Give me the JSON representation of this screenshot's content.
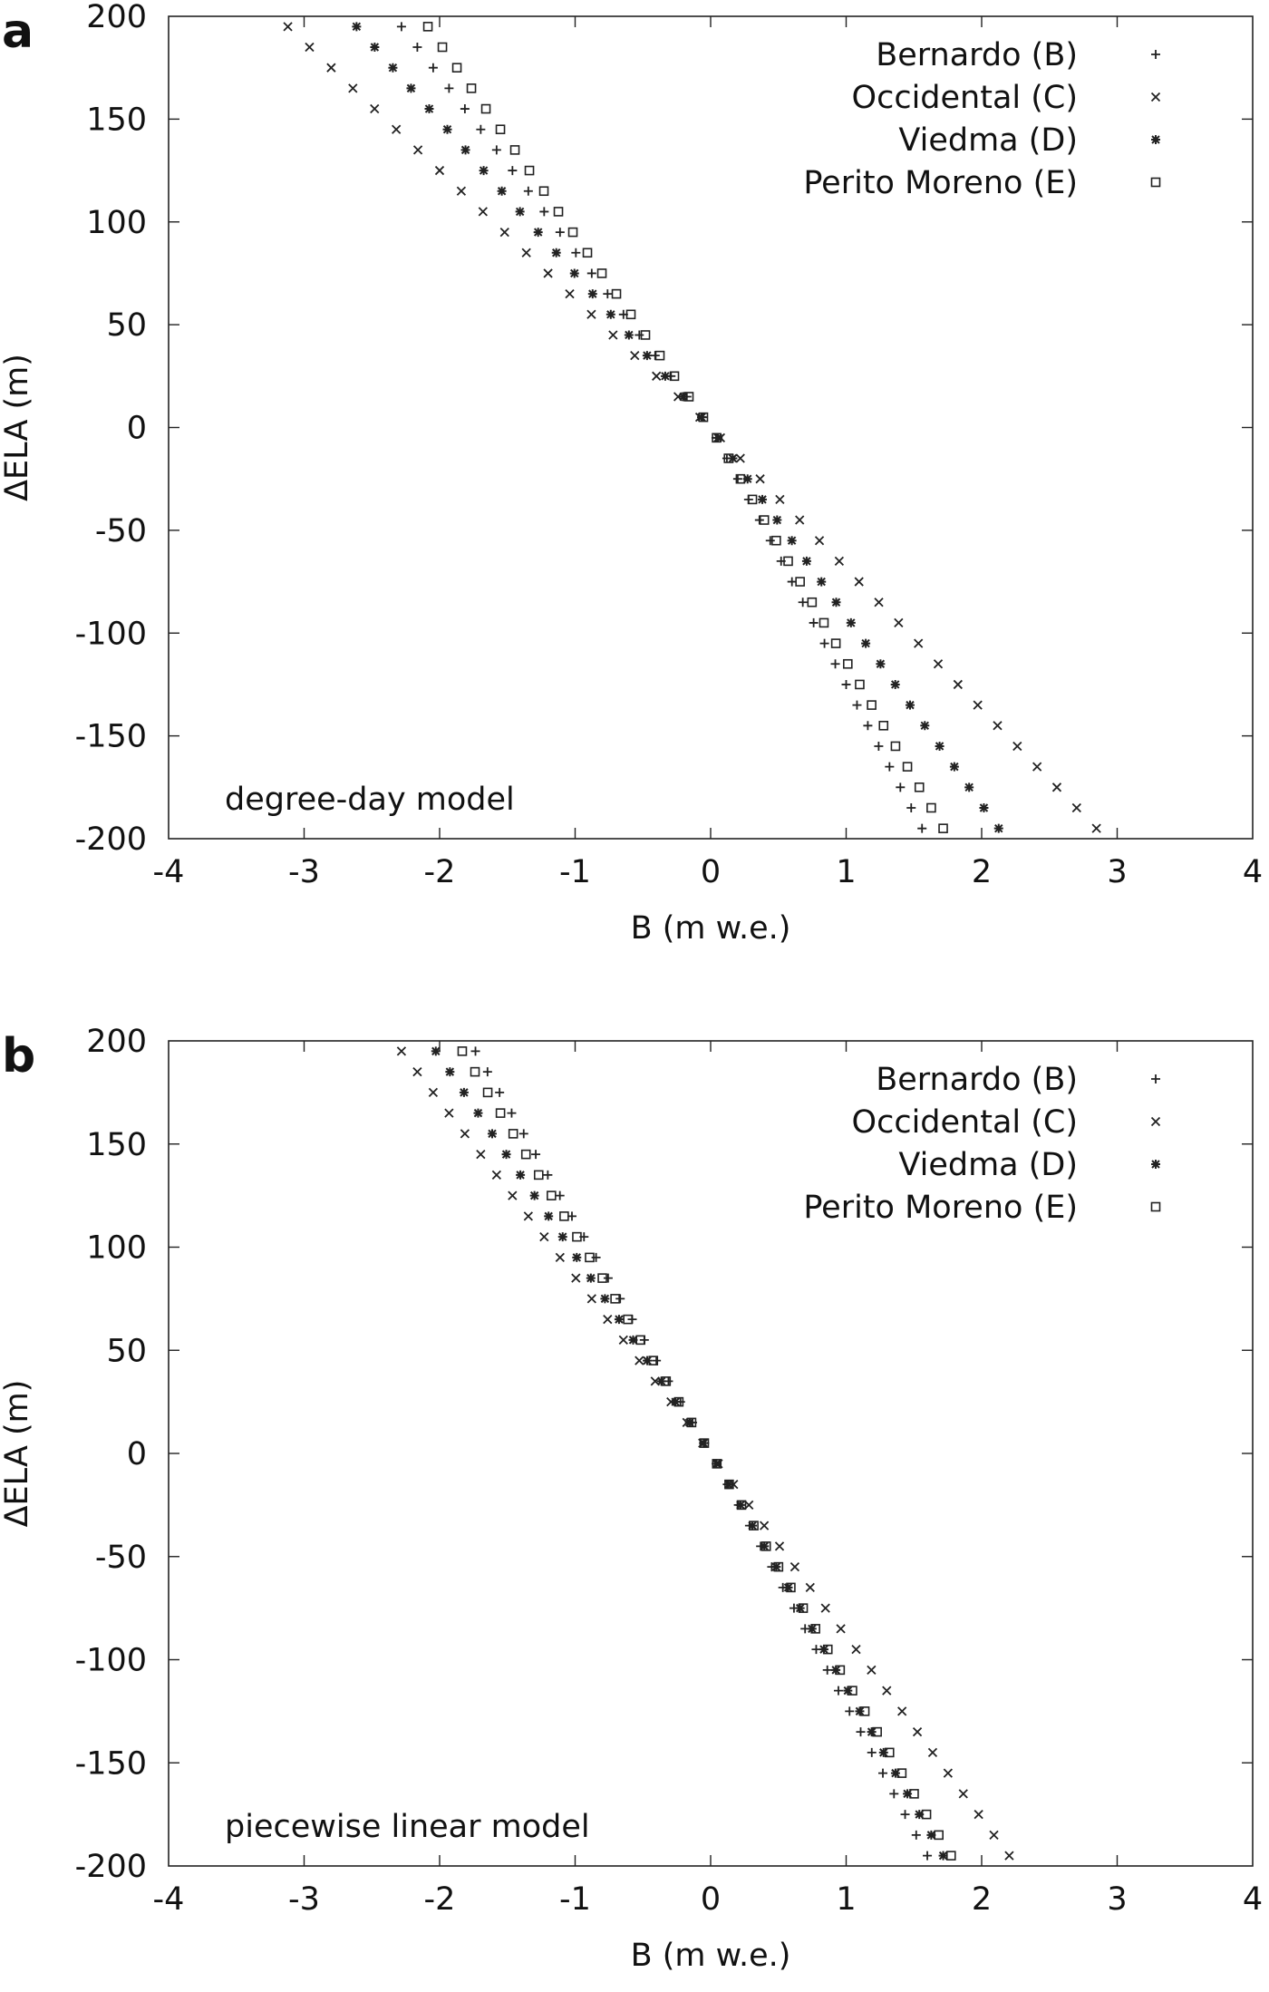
{
  "chart_data": [
    {
      "panel_label": "a",
      "type": "scatter",
      "annotation": "degree-day model",
      "xlabel": "B (m w.e.)",
      "ylabel": "ΔELA (m)",
      "xlim": [
        -4,
        4
      ],
      "ylim": [
        -200,
        200
      ],
      "xticks": [
        "-4",
        "-3",
        "-2",
        "-1",
        "0",
        "1",
        "2",
        "3",
        "4"
      ],
      "yticks": [
        "200",
        "150",
        "100",
        "50",
        "0",
        "-50",
        "-100",
        "-150",
        "-200"
      ],
      "legend_position": "top-right",
      "y_values": [
        195,
        185,
        175,
        165,
        155,
        145,
        135,
        125,
        115,
        105,
        95,
        85,
        75,
        65,
        55,
        45,
        35,
        25,
        15,
        5,
        -5,
        -15,
        -25,
        -35,
        -45,
        -55,
        -65,
        -75,
        -85,
        -95,
        -105,
        -115,
        -125,
        -135,
        -145,
        -155,
        -165,
        -175,
        -185,
        -195
      ],
      "series": [
        {
          "name": "Bernardo (B)",
          "marker": "plus",
          "upper_slope": -0.0117,
          "lower_slope": -0.008
        },
        {
          "name": "Occidental (C)",
          "marker": "cross",
          "upper_slope": -0.016,
          "lower_slope": -0.0146
        },
        {
          "name": "Viedma (D)",
          "marker": "star",
          "upper_slope": -0.0134,
          "lower_slope": -0.0109
        },
        {
          "name": "Perito Moreno (E)",
          "marker": "square",
          "upper_slope": -0.0107,
          "lower_slope": -0.0088
        }
      ]
    },
    {
      "panel_label": "b",
      "type": "scatter",
      "annotation": "piecewise linear model",
      "xlabel": "B (m w.e.)",
      "ylabel": "ΔELA (m)",
      "xlim": [
        -4,
        4
      ],
      "ylim": [
        -200,
        200
      ],
      "xticks": [
        "-4",
        "-3",
        "-2",
        "-1",
        "0",
        "1",
        "2",
        "3",
        "4"
      ],
      "yticks": [
        "200",
        "150",
        "100",
        "50",
        "0",
        "-50",
        "-100",
        "-150",
        "-200"
      ],
      "legend_position": "top-right",
      "y_values": [
        195,
        185,
        175,
        165,
        155,
        145,
        135,
        125,
        115,
        105,
        95,
        85,
        75,
        65,
        55,
        45,
        35,
        25,
        15,
        5,
        -5,
        -15,
        -25,
        -35,
        -45,
        -55,
        -65,
        -75,
        -85,
        -95,
        -105,
        -115,
        -125,
        -135,
        -145,
        -155,
        -165,
        -175,
        -185,
        -195
      ],
      "series": [
        {
          "name": "Bernardo (B)",
          "marker": "plus",
          "upper_slope": -0.0089,
          "lower_slope": -0.0082
        },
        {
          "name": "Occidental (C)",
          "marker": "cross",
          "upper_slope": -0.0117,
          "lower_slope": -0.0113
        },
        {
          "name": "Viedma (D)",
          "marker": "star",
          "upper_slope": -0.0104,
          "lower_slope": -0.0088
        },
        {
          "name": "Perito Moreno (E)",
          "marker": "square",
          "upper_slope": -0.0094,
          "lower_slope": -0.0091
        }
      ]
    }
  ]
}
